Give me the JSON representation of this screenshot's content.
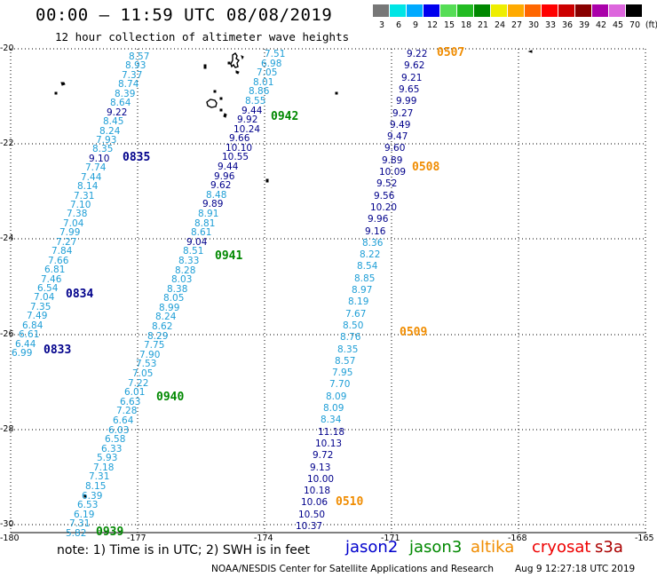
{
  "header": {
    "title": "00:00 – 11:59 UTC 08/08/2019",
    "subtitle": "12 hour collection of altimeter wave heights"
  },
  "legend": {
    "unit": "(ft)",
    "items": [
      {
        "label": "3",
        "color": "#777777"
      },
      {
        "label": "6",
        "color": "#00e5e5"
      },
      {
        "label": "9",
        "color": "#00aaff"
      },
      {
        "label": "12",
        "color": "#0000ee"
      },
      {
        "label": "15",
        "color": "#55dd55"
      },
      {
        "label": "18",
        "color": "#22bb22"
      },
      {
        "label": "21",
        "color": "#008800"
      },
      {
        "label": "24",
        "color": "#eeee00"
      },
      {
        "label": "27",
        "color": "#ffaa00"
      },
      {
        "label": "30",
        "color": "#ff6600"
      },
      {
        "label": "33",
        "color": "#ff0000"
      },
      {
        "label": "36",
        "color": "#cc0000"
      },
      {
        "label": "39",
        "color": "#880000"
      },
      {
        "label": "42",
        "color": "#aa00aa"
      },
      {
        "label": "45",
        "color": "#dd66dd"
      },
      {
        "label": "70",
        "color": "#000000"
      }
    ]
  },
  "axes": {
    "lat_ticks": [
      "-20",
      "-22",
      "-24",
      "-26",
      "-28",
      "-30"
    ],
    "lon_ticks": [
      "-180",
      "-177",
      "-174",
      "-171",
      "-168",
      "-165"
    ]
  },
  "colors": {
    "cyan": "#1e9ed6",
    "blue": "#00008b",
    "green": "#008800",
    "orange": "#f08c00"
  },
  "tracks": [
    {
      "values": [
        "8.57",
        "8.93",
        "7.37",
        "8.74",
        "8.39",
        "8.64",
        "9.22",
        "8.45",
        "8.24",
        "7.93",
        "8.35",
        "9.10",
        "7.74",
        "7.44",
        "8.14",
        "7.31",
        "7.10",
        "7.38",
        "7.04",
        "7.99",
        "7.27",
        "7.84",
        "7.66",
        "6.81",
        "7.46",
        "6.54",
        "7.04",
        "7.35",
        "7.49",
        "6.84",
        "6.61",
        "6.44",
        "6.99"
      ],
      "colors": [
        "c",
        "c",
        "c",
        "c",
        "c",
        "c",
        "b",
        "c",
        "c",
        "c",
        "c",
        "b",
        "c",
        "c",
        "c",
        "c",
        "c",
        "c",
        "c",
        "c",
        "c",
        "c",
        "c",
        "c",
        "c",
        "c",
        "c",
        "c",
        "c",
        "c",
        "c",
        "c",
        "c"
      ],
      "times": [
        "0835",
        "0834",
        "0833"
      ]
    },
    {
      "values": [
        "7.51",
        "6.98",
        "7.05",
        "8.01",
        "8.86",
        "8.55",
        "9.44",
        "9.92",
        "10.24",
        "9.66",
        "10.10",
        "10.55",
        "9.44",
        "9.96",
        "9.62",
        "8.48",
        "9.89",
        "8.91",
        "8.81",
        "8.61",
        "9.04",
        "8.51",
        "8.33",
        "8.28",
        "8.03",
        "8.38",
        "8.05",
        "8.99",
        "8.24",
        "8.62",
        "8.29",
        "7.75",
        "7.90",
        "7.53",
        "7.05",
        "7.22",
        "6.01",
        "6.63",
        "7.28",
        "6.64",
        "6.03",
        "6.58",
        "6.33",
        "5.93",
        "7.18",
        "7.31",
        "8.15",
        "6.39",
        "6.53",
        "6.19",
        "7.31",
        "5.82"
      ],
      "colors": [
        "c",
        "c",
        "c",
        "c",
        "c",
        "c",
        "b",
        "b",
        "b",
        "b",
        "b",
        "b",
        "b",
        "b",
        "b",
        "c",
        "b",
        "c",
        "c",
        "c",
        "b",
        "c",
        "c",
        "c",
        "c",
        "c",
        "c",
        "c",
        "c",
        "c",
        "c",
        "c",
        "c",
        "c",
        "c",
        "c",
        "c",
        "c",
        "c",
        "c",
        "c",
        "c",
        "c",
        "c",
        "c",
        "c",
        "c",
        "c",
        "c",
        "c",
        "c",
        "c"
      ],
      "times": [
        "0942",
        "0941",
        "0940",
        "0939"
      ]
    },
    {
      "values": [
        "9.22",
        "9.62",
        "9.21",
        "9.65",
        "9.99",
        "9.27",
        "9.49",
        "9.47",
        "9.60",
        "9.89",
        "10.09",
        "9.52",
        "9.56",
        "10.20",
        "9.96",
        "9.16",
        "8.36",
        "8.22",
        "8.54",
        "8.85",
        "8.97",
        "8.19",
        "7.67",
        "8.50",
        "8.76",
        "8.35",
        "8.57",
        "7.95",
        "7.70",
        "8.09",
        "8.09",
        "8.34",
        "11.18",
        "10.13",
        "9.72",
        "9.13",
        "10.00",
        "10.18",
        "10.06",
        "10.50",
        "10.37"
      ],
      "colors": [
        "b",
        "b",
        "b",
        "b",
        "b",
        "b",
        "b",
        "b",
        "b",
        "b",
        "b",
        "b",
        "b",
        "b",
        "b",
        "b",
        "c",
        "c",
        "c",
        "c",
        "c",
        "c",
        "c",
        "c",
        "c",
        "c",
        "c",
        "c",
        "c",
        "c",
        "c",
        "c",
        "b",
        "b",
        "b",
        "b",
        "b",
        "b",
        "b",
        "b",
        "b"
      ],
      "times": [
        "0507",
        "0508",
        "0509",
        "0510"
      ]
    }
  ],
  "footer": {
    "note": "note: 1) Time is in UTC; 2) SWH is in feet",
    "satellites": [
      {
        "name": "jason2",
        "color": "#0000cc"
      },
      {
        "name": "jason3",
        "color": "#008800"
      },
      {
        "name": "altika",
        "color": "#f08c00"
      },
      {
        "name": "cryosat",
        "color": "#ee0000"
      },
      {
        "name": "s3a",
        "color": "#aa0000"
      }
    ],
    "credit": "NOAA/NESDIS Center for Satellite Applications and Research",
    "timestamp": "Aug  9 12:27:18 UTC 2019"
  }
}
